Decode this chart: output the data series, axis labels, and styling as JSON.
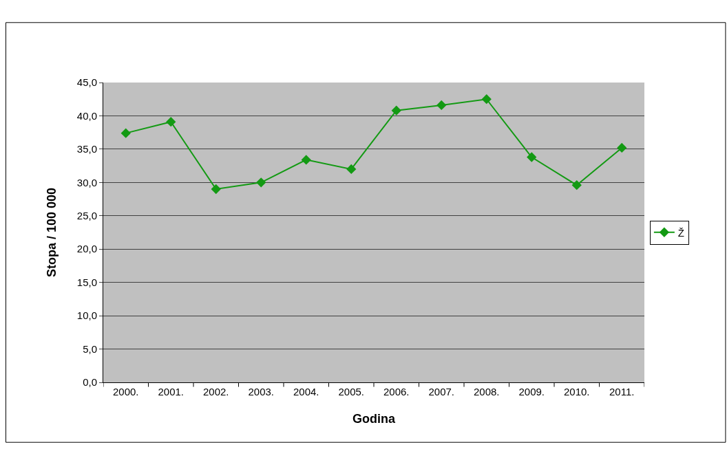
{
  "chart_data": {
    "type": "line",
    "xlabel": "Godina",
    "ylabel": "Stopa / 100 000",
    "categories": [
      "2000.",
      "2001.",
      "2002.",
      "2003.",
      "2004.",
      "2005.",
      "2006.",
      "2007.",
      "2008.",
      "2009.",
      "2010.",
      "2011."
    ],
    "series": [
      {
        "name": "Ž",
        "color": "#139a13",
        "values": [
          37.4,
          39.1,
          29.0,
          30.0,
          33.4,
          32.0,
          40.8,
          41.6,
          42.5,
          33.8,
          29.6,
          35.2
        ]
      }
    ],
    "ylim": [
      0,
      45
    ],
    "yticks": [
      {
        "value": 0,
        "label": "0,0"
      },
      {
        "value": 5,
        "label": "5,0"
      },
      {
        "value": 10,
        "label": "10,0"
      },
      {
        "value": 15,
        "label": "15,0"
      },
      {
        "value": 20,
        "label": "20,0"
      },
      {
        "value": 25,
        "label": "25,0"
      },
      {
        "value": 30,
        "label": "30,0"
      },
      {
        "value": 35,
        "label": "35,0"
      },
      {
        "value": 40,
        "label": "40,0"
      },
      {
        "value": 45,
        "label": "45,0"
      }
    ],
    "grid": "y",
    "legend": "right",
    "marker": "diamond",
    "line_style": "solid"
  }
}
